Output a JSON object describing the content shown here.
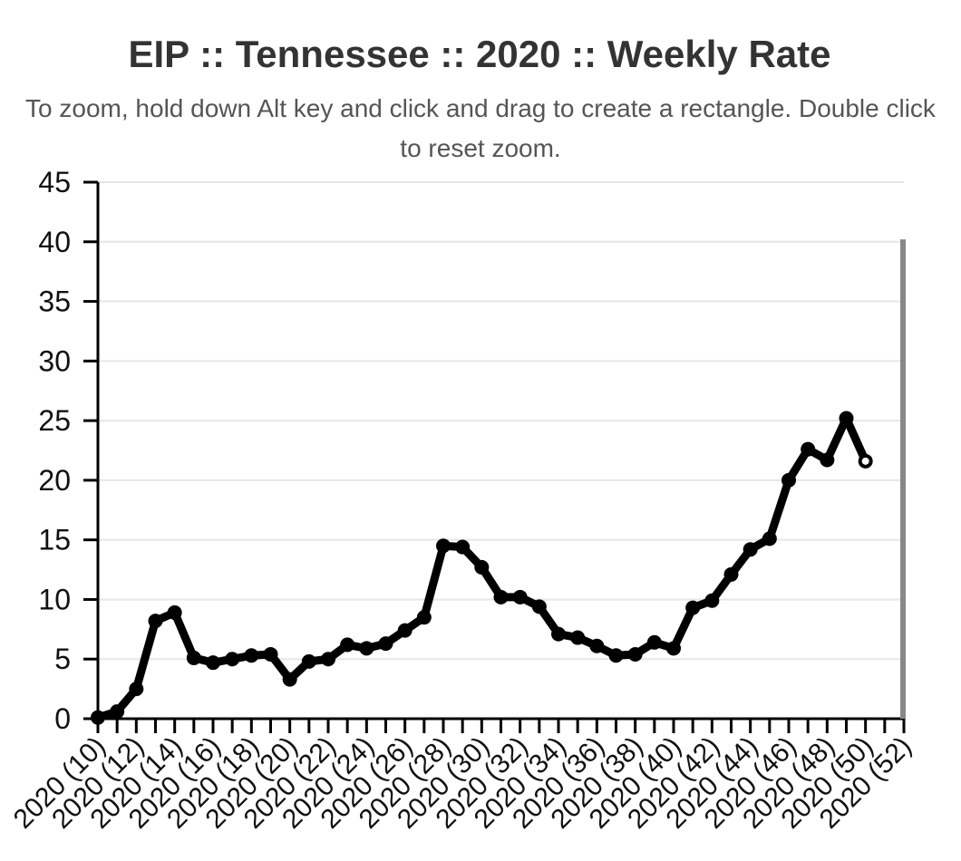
{
  "header": {
    "title": "EIP :: Tennessee :: 2020 :: Weekly Rate",
    "subtitle_line1": "To zoom, hold down Alt key and click and drag to create a rectangle. Double click",
    "subtitle_line2": "to reset zoom."
  },
  "chart_data": {
    "type": "line",
    "title": "EIP :: Tennessee :: 2020 :: Weekly Rate",
    "xlabel": "",
    "ylabel": "",
    "ylim": [
      0,
      45
    ],
    "yticks": [
      0,
      5,
      10,
      15,
      20,
      25,
      30,
      35,
      40,
      45
    ],
    "xlim": [
      10,
      52
    ],
    "xtick_labels": [
      "2020 (10)",
      "2020 (12)",
      "2020 (14)",
      "2020 (16)",
      "2020 (18)",
      "2020 (20)",
      "2020 (22)",
      "2020 (24)",
      "2020 (26)",
      "2020 (28)",
      "2020 (30)",
      "2020 (32)",
      "2020 (34)",
      "2020 (36)",
      "2020 (38)",
      "2020 (40)",
      "2020 (42)",
      "2020 (44)",
      "2020 (46)",
      "2020 (48)",
      "2020 (50)",
      "2020 (52)"
    ],
    "grid": true,
    "line_color": "#000000",
    "series": [
      {
        "x": [
          10,
          11,
          12,
          13,
          14,
          15,
          16,
          17,
          18,
          19,
          20,
          21,
          22,
          23,
          24,
          25,
          26,
          27,
          28,
          29,
          30,
          31,
          32,
          33,
          34,
          35,
          36,
          37,
          38,
          39,
          40,
          41,
          42,
          43,
          44,
          45,
          46,
          47,
          48,
          49,
          50
        ],
        "values": [
          0.1,
          0.6,
          2.5,
          8.2,
          8.9,
          5.1,
          4.7,
          5.0,
          5.3,
          5.4,
          3.3,
          4.8,
          5.0,
          6.2,
          5.9,
          6.3,
          7.4,
          8.5,
          14.5,
          14.4,
          12.7,
          10.2,
          10.2,
          9.4,
          7.1,
          6.8,
          6.1,
          5.3,
          5.4,
          6.4,
          5.9,
          9.3,
          9.9,
          12.1,
          14.2,
          15.1,
          20.0,
          22.6,
          21.7,
          25.2,
          21.6
        ]
      }
    ]
  }
}
